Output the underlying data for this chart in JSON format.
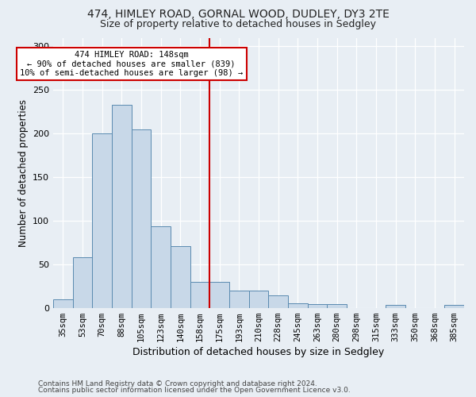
{
  "title1": "474, HIMLEY ROAD, GORNAL WOOD, DUDLEY, DY3 2TE",
  "title2": "Size of property relative to detached houses in Sedgley",
  "xlabel": "Distribution of detached houses by size in Sedgley",
  "ylabel": "Number of detached properties",
  "categories": [
    "35sqm",
    "53sqm",
    "70sqm",
    "88sqm",
    "105sqm",
    "123sqm",
    "140sqm",
    "158sqm",
    "175sqm",
    "193sqm",
    "210sqm",
    "228sqm",
    "245sqm",
    "263sqm",
    "280sqm",
    "298sqm",
    "315sqm",
    "333sqm",
    "350sqm",
    "368sqm",
    "385sqm"
  ],
  "values": [
    10,
    58,
    200,
    233,
    205,
    94,
    71,
    30,
    30,
    20,
    20,
    14,
    5,
    4,
    4,
    0,
    0,
    3,
    0,
    0,
    3
  ],
  "bar_color": "#c8d8e8",
  "bar_edge_color": "#5a8ab0",
  "vline_color": "#cc0000",
  "vline_pos": 7.5,
  "annotation_text": "474 HIMLEY ROAD: 148sqm\n← 90% of detached houses are smaller (839)\n10% of semi-detached houses are larger (98) →",
  "annotation_box_color": "#ffffff",
  "annotation_box_edge_color": "#cc0000",
  "ylim": [
    0,
    310
  ],
  "yticks": [
    0,
    50,
    100,
    150,
    200,
    250,
    300
  ],
  "footnote1": "Contains HM Land Registry data © Crown copyright and database right 2024.",
  "footnote2": "Contains public sector information licensed under the Open Government Licence v3.0.",
  "bg_color": "#e8eef4",
  "grid_color": "#ffffff",
  "title1_fontsize": 10,
  "title2_fontsize": 9,
  "tick_fontsize": 7.5,
  "ylabel_fontsize": 8.5,
  "xlabel_fontsize": 9,
  "footnote_fontsize": 6.5
}
